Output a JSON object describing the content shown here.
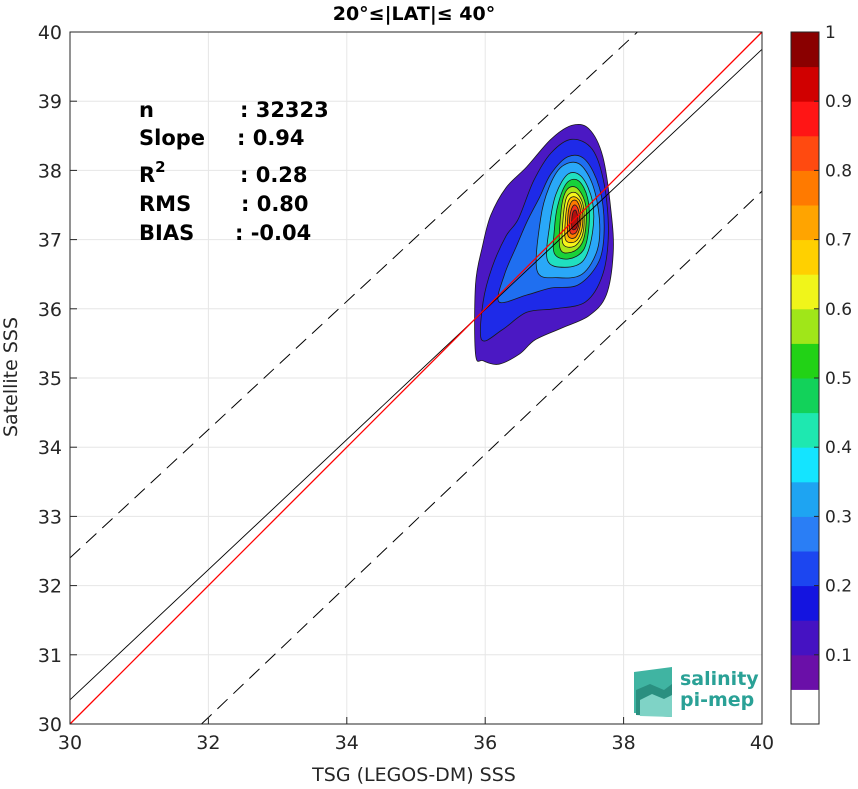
{
  "chart_data": {
    "type": "heatmap",
    "title": "20°≤|LAT|≤ 40°",
    "xlabel": "TSG (LEGOS-DM) SSS",
    "ylabel": "Satellite SSS",
    "xlim": [
      30,
      40
    ],
    "ylim": [
      30,
      40
    ],
    "xticks": [
      30,
      32,
      34,
      36,
      38,
      40
    ],
    "yticks": [
      30,
      31,
      32,
      33,
      34,
      35,
      36,
      37,
      38,
      39,
      40
    ],
    "grid": true,
    "stats": [
      {
        "label": "n",
        "value": ": 32323"
      },
      {
        "label": "Slope",
        "value": ": 0.94"
      },
      {
        "label": "R",
        "sup": "2",
        "value": ": 0.28"
      },
      {
        "label": "RMS",
        "value": ": 0.80"
      },
      {
        "label": "BIAS",
        "value": ": -0.04"
      }
    ],
    "lines": {
      "identity": {
        "color": "#ff0000",
        "points": [
          [
            30,
            30
          ],
          [
            40,
            40
          ]
        ]
      },
      "regression": {
        "color": "#000000",
        "points": [
          [
            30,
            30.35
          ],
          [
            40,
            39.75
          ]
        ]
      },
      "plus_band": {
        "color": "#000000",
        "dash": true,
        "points": [
          [
            30,
            32.4
          ],
          [
            38.2,
            40
          ]
        ]
      },
      "minus_band": {
        "color": "#000000",
        "dash": true,
        "points": [
          [
            31.9,
            30
          ],
          [
            40,
            37.7
          ]
        ]
      }
    },
    "density_contours": [
      {
        "level": 0.05,
        "color": "#4b18c3",
        "points": [
          [
            35.86,
            35.35
          ],
          [
            35.97,
            35.25
          ],
          [
            36.2,
            35.2
          ],
          [
            36.5,
            35.35
          ],
          [
            36.72,
            35.55
          ],
          [
            37.1,
            35.72
          ],
          [
            37.5,
            35.9
          ],
          [
            37.75,
            36.2
          ],
          [
            37.85,
            36.8
          ],
          [
            37.82,
            37.4
          ],
          [
            37.7,
            38.2
          ],
          [
            37.5,
            38.6
          ],
          [
            37.25,
            38.65
          ],
          [
            36.95,
            38.45
          ],
          [
            36.6,
            38.05
          ],
          [
            36.3,
            37.75
          ],
          [
            36.08,
            37.35
          ],
          [
            35.96,
            36.9
          ],
          [
            35.86,
            36.35
          ]
        ]
      },
      {
        "level": 0.15,
        "color": "#1e2ae8",
        "points": [
          [
            35.95,
            35.55
          ],
          [
            36.25,
            35.7
          ],
          [
            36.6,
            35.95
          ],
          [
            37.0,
            36.0
          ],
          [
            37.45,
            36.1
          ],
          [
            37.7,
            36.5
          ],
          [
            37.78,
            37.1
          ],
          [
            37.72,
            37.8
          ],
          [
            37.55,
            38.3
          ],
          [
            37.25,
            38.45
          ],
          [
            36.95,
            38.25
          ],
          [
            36.7,
            37.85
          ],
          [
            36.48,
            37.3
          ],
          [
            36.3,
            37.05
          ],
          [
            36.1,
            36.6
          ],
          [
            35.97,
            36.1
          ]
        ]
      },
      {
        "level": 0.25,
        "color": "#1f6ff0",
        "points": [
          [
            36.2,
            36.1
          ],
          [
            36.6,
            36.2
          ],
          [
            36.95,
            36.3
          ],
          [
            37.35,
            36.35
          ],
          [
            37.65,
            36.7
          ],
          [
            37.72,
            37.2
          ],
          [
            37.65,
            37.75
          ],
          [
            37.45,
            38.15
          ],
          [
            37.2,
            38.2
          ],
          [
            36.95,
            37.95
          ],
          [
            36.78,
            37.6
          ],
          [
            36.6,
            37.25
          ],
          [
            36.45,
            36.9
          ],
          [
            36.28,
            36.5
          ]
        ]
      },
      {
        "level": 0.3,
        "color": "#2aa8f8",
        "points": [
          [
            36.75,
            36.55
          ],
          [
            37.05,
            36.45
          ],
          [
            37.4,
            36.5
          ],
          [
            37.62,
            36.85
          ],
          [
            37.65,
            37.3
          ],
          [
            37.55,
            37.8
          ],
          [
            37.35,
            38.1
          ],
          [
            37.1,
            38.05
          ],
          [
            36.92,
            37.75
          ],
          [
            36.8,
            37.3
          ]
        ]
      },
      {
        "level": 0.4,
        "color": "#20e0c0",
        "points": [
          [
            36.9,
            36.7
          ],
          [
            37.15,
            36.6
          ],
          [
            37.42,
            36.7
          ],
          [
            37.55,
            37.1
          ],
          [
            37.55,
            37.55
          ],
          [
            37.4,
            37.9
          ],
          [
            37.2,
            37.95
          ],
          [
            37.02,
            37.65
          ],
          [
            36.93,
            37.2
          ]
        ]
      },
      {
        "level": 0.5,
        "color": "#18d13a",
        "points": [
          [
            37.0,
            36.8
          ],
          [
            37.2,
            36.72
          ],
          [
            37.42,
            36.85
          ],
          [
            37.5,
            37.2
          ],
          [
            37.48,
            37.6
          ],
          [
            37.35,
            37.85
          ],
          [
            37.18,
            37.82
          ],
          [
            37.05,
            37.5
          ],
          [
            37.0,
            37.15
          ]
        ]
      },
      {
        "level": 0.6,
        "color": "#a8e619",
        "points": [
          [
            37.08,
            36.88
          ],
          [
            37.25,
            36.82
          ],
          [
            37.4,
            36.95
          ],
          [
            37.46,
            37.25
          ],
          [
            37.44,
            37.55
          ],
          [
            37.32,
            37.75
          ],
          [
            37.18,
            37.72
          ],
          [
            37.1,
            37.45
          ]
        ]
      },
      {
        "level": 0.65,
        "color": "#f7f51a",
        "points": [
          [
            37.12,
            36.95
          ],
          [
            37.28,
            36.9
          ],
          [
            37.4,
            37.05
          ],
          [
            37.43,
            37.3
          ],
          [
            37.4,
            37.55
          ],
          [
            37.3,
            37.68
          ],
          [
            37.18,
            37.62
          ],
          [
            37.13,
            37.35
          ]
        ]
      },
      {
        "level": 0.7,
        "color": "#ffbf00",
        "points": [
          [
            37.16,
            37.0
          ],
          [
            37.3,
            36.97
          ],
          [
            37.39,
            37.12
          ],
          [
            37.41,
            37.35
          ],
          [
            37.37,
            37.55
          ],
          [
            37.28,
            37.62
          ],
          [
            37.2,
            37.55
          ],
          [
            37.16,
            37.3
          ]
        ]
      },
      {
        "level": 0.8,
        "color": "#ff7a00",
        "points": [
          [
            37.2,
            37.05
          ],
          [
            37.3,
            37.03
          ],
          [
            37.37,
            37.18
          ],
          [
            37.38,
            37.4
          ],
          [
            37.33,
            37.55
          ],
          [
            37.26,
            37.56
          ],
          [
            37.21,
            37.45
          ],
          [
            37.19,
            37.25
          ]
        ]
      },
      {
        "level": 0.85,
        "color": "#f0321c",
        "points": [
          [
            37.23,
            37.1
          ],
          [
            37.31,
            37.1
          ],
          [
            37.36,
            37.25
          ],
          [
            37.35,
            37.42
          ],
          [
            37.3,
            37.5
          ],
          [
            37.25,
            37.45
          ],
          [
            37.22,
            37.3
          ]
        ]
      },
      {
        "level": 0.95,
        "color": "#b10f0f",
        "points": [
          [
            37.26,
            37.15
          ],
          [
            37.32,
            37.17
          ],
          [
            37.34,
            37.3
          ],
          [
            37.31,
            37.42
          ],
          [
            37.27,
            37.4
          ],
          [
            37.25,
            37.27
          ]
        ]
      }
    ],
    "colorbar": {
      "ticks": [
        "0.1",
        "0.2",
        "0.3",
        "0.4",
        "0.5",
        "0.6",
        "0.7",
        "0.8",
        "0.9",
        "1"
      ],
      "range": [
        0,
        1
      ],
      "colors": [
        "#ffffff",
        "#6a0fa8",
        "#4512c2",
        "#1414e0",
        "#1c46f0",
        "#2a7ef5",
        "#1ea4f2",
        "#14e4ff",
        "#1ee8b0",
        "#12d25a",
        "#22d216",
        "#a0e619",
        "#f0f51a",
        "#ffd000",
        "#ffa400",
        "#ff7a00",
        "#ff4a10",
        "#ff1515",
        "#d00000",
        "#8a0000"
      ]
    }
  },
  "logo": {
    "line1": "salinity",
    "line2": "pi-mep",
    "name": "salinity-pimep-logo"
  }
}
